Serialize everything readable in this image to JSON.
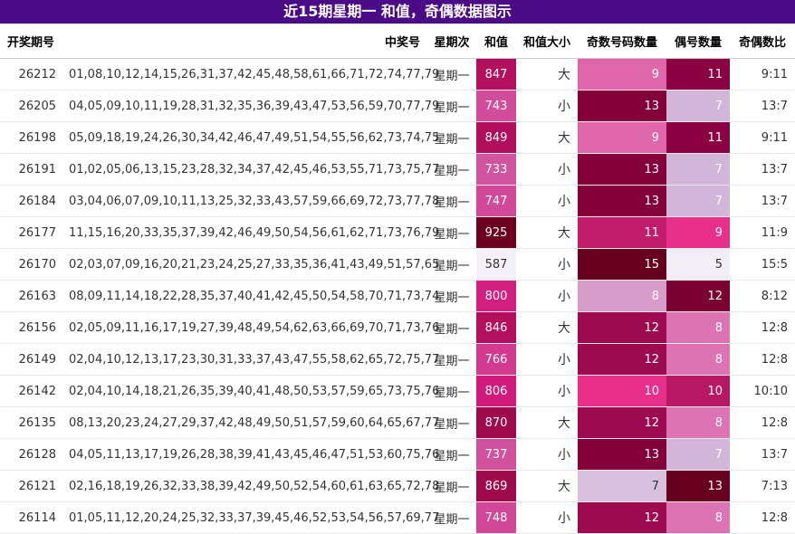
{
  "title": "近15期星期一 和值，奇偶数据图示",
  "headers": {
    "issue": "开奖期号",
    "numbers": "中奖号",
    "weekday": "星期次",
    "sum": "和值",
    "size": "和值大小",
    "odd": "奇数号码数量",
    "even": "偶号数量",
    "ratio": "奇偶数比"
  },
  "colors": {
    "title_bg": "#4b0a86",
    "sum_scale": [
      "#f4f0f8",
      "#cf6fb0",
      "#d3157a",
      "#6b0021"
    ],
    "odd_even_scale": [
      "#f1eef5",
      "#d1b6d9",
      "#e8308b",
      "#8a0040",
      "#67001f"
    ]
  },
  "rows": [
    {
      "issue": "26212",
      "numbers": "01,08,10,12,14,15,26,31,37,42,45,48,58,61,66,71,72,74,77,79",
      "weekday": "星期一",
      "sum": "847",
      "size": "大",
      "odd": "9",
      "even": "11",
      "ratio": "9:11"
    },
    {
      "issue": "26205",
      "numbers": "04,05,09,10,11,19,28,31,32,35,36,39,43,47,53,56,59,70,77,79",
      "weekday": "星期一",
      "sum": "743",
      "size": "小",
      "odd": "13",
      "even": "7",
      "ratio": "13:7"
    },
    {
      "issue": "26198",
      "numbers": "05,09,18,19,24,26,30,34,42,46,47,49,51,54,55,56,62,73,74,75",
      "weekday": "星期一",
      "sum": "849",
      "size": "大",
      "odd": "9",
      "even": "11",
      "ratio": "9:11"
    },
    {
      "issue": "26191",
      "numbers": "01,02,05,06,13,15,23,28,32,34,37,42,45,46,53,55,71,73,75,77",
      "weekday": "星期一",
      "sum": "733",
      "size": "小",
      "odd": "13",
      "even": "7",
      "ratio": "13:7"
    },
    {
      "issue": "26184",
      "numbers": "03,04,06,07,09,10,11,13,25,32,33,43,57,59,66,69,72,73,77,78",
      "weekday": "星期一",
      "sum": "747",
      "size": "小",
      "odd": "13",
      "even": "7",
      "ratio": "13:7"
    },
    {
      "issue": "26177",
      "numbers": "11,15,16,20,33,35,37,39,42,46,49,50,54,56,61,62,71,73,76,79",
      "weekday": "星期一",
      "sum": "925",
      "size": "大",
      "odd": "11",
      "even": "9",
      "ratio": "11:9"
    },
    {
      "issue": "26170",
      "numbers": "02,03,07,09,16,20,21,23,24,25,27,33,35,36,41,43,49,51,57,65",
      "weekday": "星期一",
      "sum": "587",
      "size": "小",
      "odd": "15",
      "even": "5",
      "ratio": "15:5"
    },
    {
      "issue": "26163",
      "numbers": "08,09,11,14,18,22,28,35,37,40,41,42,45,50,54,58,70,71,73,74",
      "weekday": "星期一",
      "sum": "800",
      "size": "小",
      "odd": "8",
      "even": "12",
      "ratio": "8:12"
    },
    {
      "issue": "26156",
      "numbers": "02,05,09,11,16,17,19,27,39,48,49,54,62,63,66,69,70,71,73,76",
      "weekday": "星期一",
      "sum": "846",
      "size": "大",
      "odd": "12",
      "even": "8",
      "ratio": "12:8"
    },
    {
      "issue": "26149",
      "numbers": "02,04,10,12,13,17,23,30,31,33,37,43,47,55,58,62,65,72,75,77",
      "weekday": "星期一",
      "sum": "766",
      "size": "小",
      "odd": "12",
      "even": "8",
      "ratio": "12:8"
    },
    {
      "issue": "26142",
      "numbers": "02,04,10,14,18,21,26,35,39,40,41,48,50,53,57,59,65,73,75,76",
      "weekday": "星期一",
      "sum": "806",
      "size": "小",
      "odd": "10",
      "even": "10",
      "ratio": "10:10"
    },
    {
      "issue": "26135",
      "numbers": "08,13,20,23,24,27,29,37,42,48,49,50,51,57,59,60,64,65,67,77",
      "weekday": "星期一",
      "sum": "870",
      "size": "大",
      "odd": "12",
      "even": "8",
      "ratio": "12:8"
    },
    {
      "issue": "26128",
      "numbers": "04,05,11,13,17,19,26,28,38,39,41,43,45,46,47,51,53,60,75,76",
      "weekday": "星期一",
      "sum": "737",
      "size": "小",
      "odd": "13",
      "even": "7",
      "ratio": "13:7"
    },
    {
      "issue": "26121",
      "numbers": "02,16,18,19,26,32,33,38,39,42,49,50,52,54,60,61,63,65,72,78",
      "weekday": "星期一",
      "sum": "869",
      "size": "大",
      "odd": "7",
      "even": "13",
      "ratio": "7:13"
    },
    {
      "issue": "26114",
      "numbers": "01,05,11,12,20,24,25,32,33,37,39,45,46,52,53,54,56,57,69,77",
      "weekday": "星期一",
      "sum": "748",
      "size": "小",
      "odd": "12",
      "even": "8",
      "ratio": "12:8"
    }
  ]
}
